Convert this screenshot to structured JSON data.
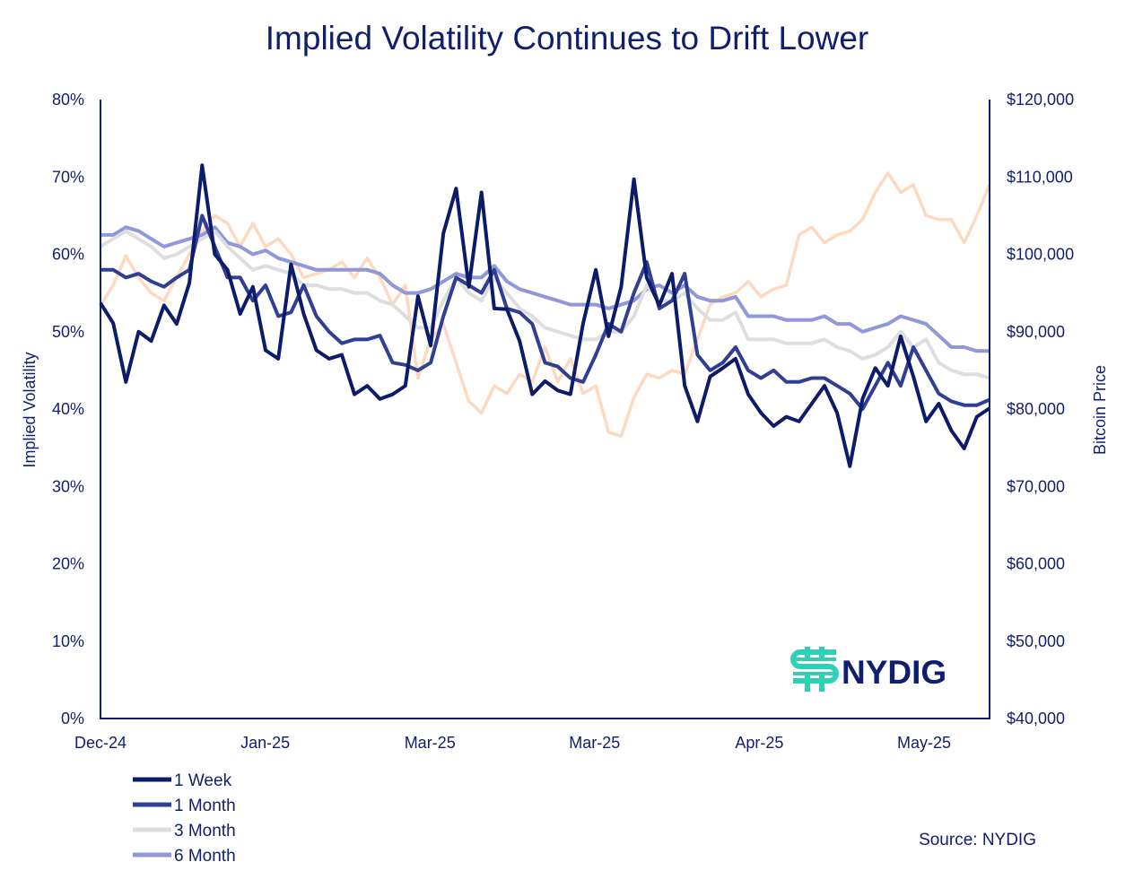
{
  "chart_data": {
    "type": "line",
    "title": "Implied Volatility Continues to Drift Lower",
    "ylabel": "Implied Volatility",
    "y2label": "Bitcoin Price",
    "ylim": [
      0,
      80
    ],
    "y2lim": [
      40000,
      120000
    ],
    "yticks": [
      "0%",
      "10%",
      "20%",
      "30%",
      "40%",
      "50%",
      "60%",
      "70%",
      "80%"
    ],
    "y2ticks": [
      "$40,000",
      "$50,000",
      "$60,000",
      "$70,000",
      "$80,000",
      "$90,000",
      "$100,000",
      "$110,000",
      "$120,000"
    ],
    "xticks": [
      "Dec-24",
      "Jan-25",
      "Mar-25",
      "Mar-25",
      "Apr-25",
      "May-25"
    ],
    "grid": false,
    "legend_position": "bottom-left",
    "source": "Source: NYDIG",
    "logo_text": "NYDIG",
    "series": [
      {
        "name": "1 Week",
        "axis": "left",
        "color": "#0d1b6b",
        "values": [
          53.7,
          51.1,
          43.5,
          50,
          48.8,
          53.4,
          51,
          56.3,
          71.5,
          60,
          58,
          52.3,
          55.8,
          47.6,
          46.5,
          58.7,
          52.3,
          47.6,
          46.5,
          47,
          41.9,
          43,
          41.3,
          41.9,
          43,
          54.6,
          48.2,
          62.7,
          68.5,
          55.8,
          68,
          53,
          52.9,
          48.8,
          41.9,
          43.6,
          42.4,
          41.9,
          51.1,
          58,
          49.4,
          55.8,
          69.7,
          57,
          53.4,
          57.5,
          43,
          38.4,
          44.2,
          45.3,
          46.5,
          41.9,
          39.5,
          37.8,
          39,
          38.4,
          40.7,
          43,
          39.5,
          32.6,
          41.3,
          45.3,
          43,
          49.4,
          44.2,
          38.4,
          40.7,
          37.2,
          34.9,
          39,
          40.1
        ]
      },
      {
        "name": "1 Month",
        "axis": "left",
        "color": "#2f3f94",
        "values": [
          58,
          58,
          57,
          57.5,
          56.5,
          55.8,
          57,
          58,
          65,
          61,
          57,
          57,
          54,
          56,
          52,
          52.5,
          56,
          52,
          50,
          48.5,
          49,
          49,
          49.5,
          46,
          45.7,
          45,
          46,
          52,
          57,
          56,
          55,
          58,
          53,
          52.5,
          51,
          46,
          45.5,
          44,
          43.5,
          47,
          51,
          50,
          55,
          59,
          53,
          54,
          57.5,
          47,
          45,
          46,
          48,
          45,
          44,
          45,
          43.5,
          43.5,
          44,
          44,
          43,
          42,
          40,
          43,
          46,
          43,
          48,
          45,
          42,
          41,
          40.5,
          40.5,
          41.2
        ]
      },
      {
        "name": "3 Month",
        "axis": "left",
        "color": "#dedede",
        "values": [
          61,
          62,
          63,
          62,
          61,
          59.5,
          60,
          61,
          62,
          63,
          61,
          59.5,
          58,
          58.5,
          58,
          57.5,
          56,
          56,
          55.5,
          55.5,
          55,
          55,
          54,
          53.5,
          52,
          50.5,
          50.5,
          54,
          57,
          55,
          54,
          57,
          55,
          53,
          52,
          50.5,
          50,
          49.5,
          49,
          49,
          50,
          50,
          52,
          56,
          54,
          54,
          55,
          53,
          51.5,
          51.5,
          52.5,
          49,
          49,
          49,
          48.5,
          48.5,
          48.5,
          49,
          48,
          47.5,
          46.5,
          47,
          48,
          50,
          48,
          49,
          46,
          45,
          44.5,
          44.5,
          44
        ]
      },
      {
        "name": "6 Month",
        "axis": "left",
        "color": "#8f98d8",
        "values": [
          62.5,
          62.5,
          63.5,
          63,
          62,
          61,
          61.5,
          62,
          62.5,
          63.5,
          61.5,
          61,
          60,
          60.5,
          59.5,
          59,
          58.5,
          58,
          58,
          58,
          58,
          58,
          57.5,
          56,
          55,
          55,
          55.5,
          56.5,
          57.5,
          57,
          57,
          58.5,
          56.5,
          55.5,
          55,
          54.5,
          54,
          53.5,
          53.5,
          53.5,
          53,
          53.5,
          54,
          55.5,
          56,
          55,
          56,
          54.5,
          54,
          54,
          54.5,
          52,
          52,
          52,
          51.5,
          51.5,
          51.5,
          52,
          51,
          51,
          50,
          50.5,
          51,
          52,
          51.5,
          51,
          49.5,
          48,
          48,
          47.5,
          47.5
        ]
      },
      {
        "name": "",
        "axis": "right",
        "color": "#fdd9bf",
        "values": [
          93400,
          96000,
          99800,
          97000,
          95000,
          94000,
          97000,
          100000,
          103000,
          105000,
          104000,
          101000,
          104000,
          101000,
          102000,
          100000,
          97000,
          97500,
          98000,
          99000,
          97000,
          99500,
          97000,
          93500,
          96000,
          84000,
          89000,
          91000,
          86000,
          81000,
          79500,
          83000,
          82000,
          84500,
          83500,
          88000,
          83500,
          86500,
          82000,
          83000,
          77000,
          76500,
          81500,
          84500,
          84000,
          85000,
          84500,
          89000,
          93500,
          94500,
          95000,
          96500,
          94500,
          95500,
          96000,
          102500,
          103500,
          101500,
          102500,
          103000,
          104500,
          108000,
          110500,
          108000,
          109000,
          105000,
          104500,
          104500,
          101500,
          105000,
          109000
        ]
      }
    ]
  }
}
